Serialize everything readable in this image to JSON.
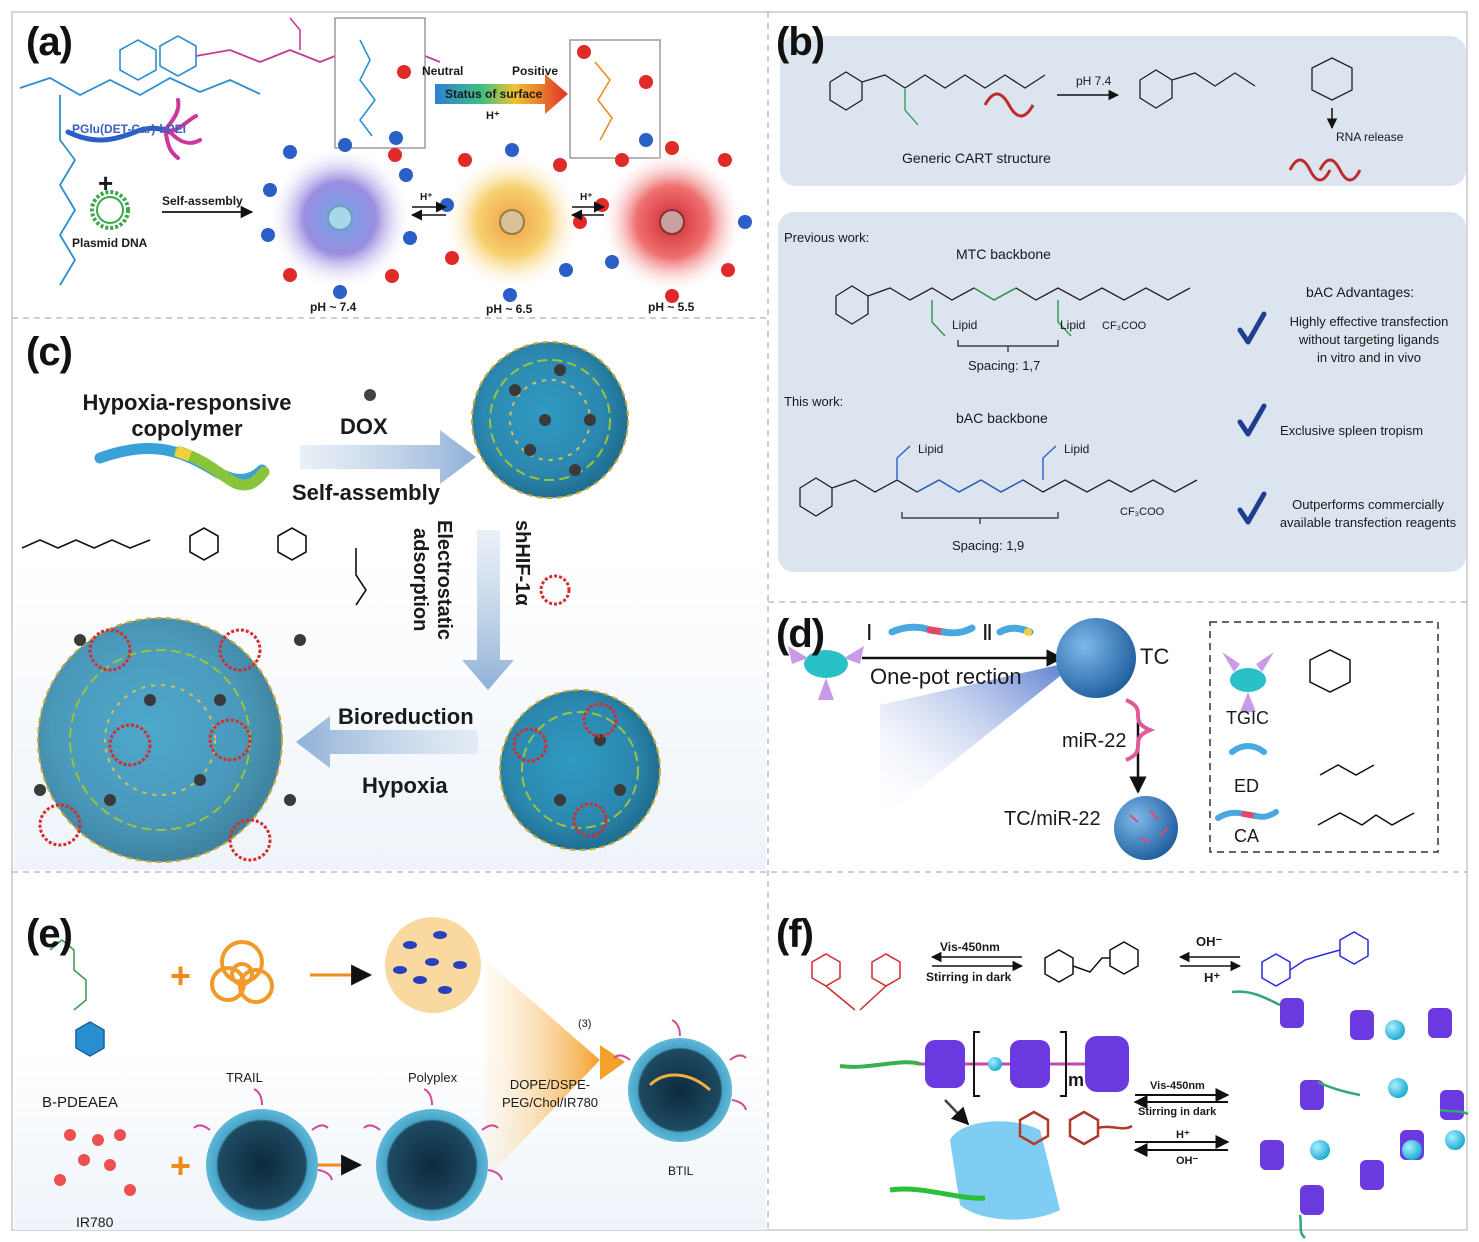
{
  "panels": {
    "a": {
      "label": "(a)",
      "polymer_name": "PGlu(DET-Car)-bPEI",
      "plus": "+",
      "plasmid": "Plasmid DNA",
      "self_assembly": "Self-assembly",
      "neutral": "Neutral",
      "positive": "Positive",
      "status": "Status of surface",
      "h_plus": "H⁺",
      "ph_states": [
        "pH ~ 7.4",
        "pH ~ 6.5",
        "pH ~ 5.5"
      ]
    },
    "b": {
      "label": "(b)",
      "ph_condition": "pH 7.4",
      "generic_cart": "Generic CART structure",
      "rna_release": "RNA release",
      "previous_work": "Previous work:",
      "mtc_backbone": "MTC backbone",
      "spacing_mtc": "Spacing: 1,7",
      "this_work": "This work:",
      "bac_backbone": "bAC backbone",
      "spacing_bac": "Spacing: 1,9",
      "lipid": "Lipid",
      "counter_ion": "CF₃COO",
      "advantages_title": "bAC Advantages:",
      "advantages": [
        "Highly effective transfection\nwithout targeting ligands\nin vitro and in vivo",
        "Exclusive spleen tropism",
        "Outperforms commercially\navailable transfection reagents"
      ],
      "accent_color": "#1e3f8f",
      "panel_bg": "#dbe4ef"
    },
    "c": {
      "label": "(c)",
      "copolymer": "Hypoxia-responsive\ncopolymer",
      "dox": "DOX",
      "self_assembly": "Self-assembly",
      "electrostatic": "Electrostatic\nadsorption",
      "shhif": "shHIF-1α",
      "bioreduction": "Bioreduction",
      "hypoxia": "Hypoxia"
    },
    "d": {
      "label": "(d)",
      "step_i": "Ⅰ",
      "step_ii": "Ⅱ",
      "one_pot": "One-pot rection",
      "tc": "TC",
      "mir22": "miR-22",
      "tc_mir22": "TC/miR-22",
      "legend": [
        "TGIC",
        "ED",
        "CA"
      ]
    },
    "e": {
      "label": "(e)",
      "bpdeaea": "B-PDEAEA",
      "trail": "TRAIL",
      "polyplex": "Polyplex",
      "ir780": "IR780",
      "step3": "(3)",
      "lipids": "DOPE/DSPE-\nPEG/Chol/IR780",
      "btil": "BTIL",
      "plus": "+"
    },
    "f": {
      "label": "(f)",
      "vis": "Vis-450nm",
      "stirring": "Stirring in dark",
      "oh": "OH⁻",
      "h": "H⁺",
      "m": "m"
    }
  }
}
